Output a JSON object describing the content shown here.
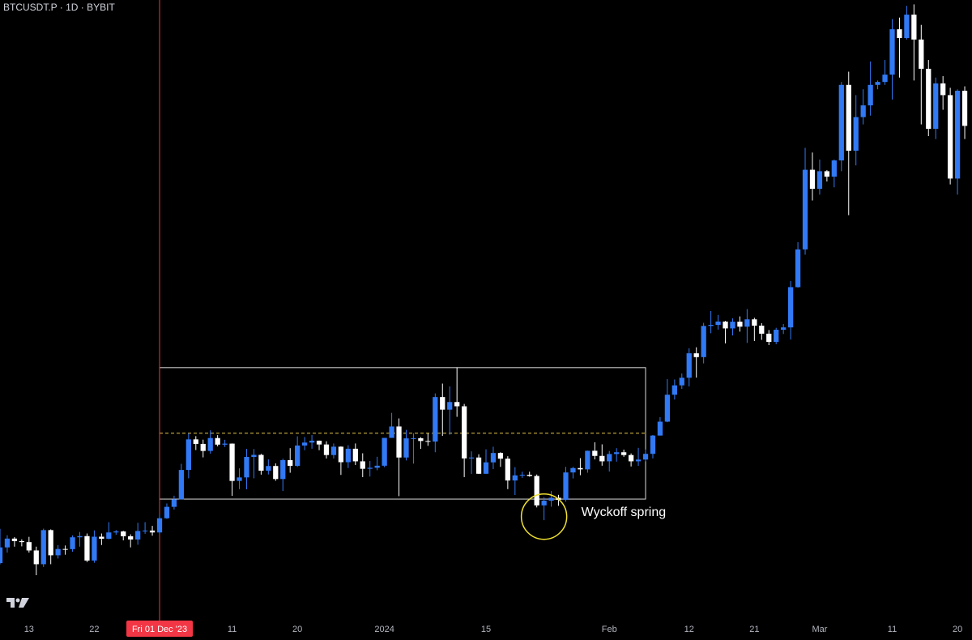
{
  "chart_data": {
    "type": "candlestick",
    "title": "BTCUSDT.P · 1D · BYBIT",
    "up_color": "#3179f5",
    "down_color": "#ffffff",
    "xlim": [
      "2023-11-09",
      "2024-03-22"
    ],
    "ylim": [
      31700,
      74100
    ],
    "xticks": [
      {
        "value": "2023-11-13",
        "label": "13"
      },
      {
        "value": "2023-11-22",
        "label": "22"
      },
      {
        "value": "2023-12-11",
        "label": "11"
      },
      {
        "value": "2023-12-20",
        "label": "20"
      },
      {
        "value": "2024-01-01",
        "label": "2024"
      },
      {
        "value": "2024-01-15",
        "label": "15"
      },
      {
        "value": "2024-02-01",
        "label": "Feb"
      },
      {
        "value": "2024-02-12",
        "label": "12"
      },
      {
        "value": "2024-02-21",
        "label": "21"
      },
      {
        "value": "2024-03-01",
        "label": "Mar"
      },
      {
        "value": "2024-03-11",
        "label": "11"
      },
      {
        "value": "2024-03-20",
        "label": "20"
      }
    ],
    "crosshair": {
      "x": "2023-12-01",
      "label": "Fri 01 Dec '23"
    },
    "range_box": {
      "x": [
        "2023-12-01",
        "2024-02-06"
      ],
      "y": [
        40000,
        48980
      ]
    },
    "midline": 44500,
    "spring": {
      "x": "2024-01-23",
      "y": 38800,
      "label": "Wyckoff spring"
    },
    "x": [
      "2023-11-09",
      "2023-11-10",
      "2023-11-11",
      "2023-11-12",
      "2023-11-13",
      "2023-11-14",
      "2023-11-15",
      "2023-11-16",
      "2023-11-17",
      "2023-11-18",
      "2023-11-19",
      "2023-11-20",
      "2023-11-21",
      "2023-11-22",
      "2023-11-23",
      "2023-11-24",
      "2023-11-25",
      "2023-11-26",
      "2023-11-27",
      "2023-11-28",
      "2023-11-29",
      "2023-11-30",
      "2023-12-01",
      "2023-12-02",
      "2023-12-03",
      "2023-12-04",
      "2023-12-05",
      "2023-12-06",
      "2023-12-07",
      "2023-12-08",
      "2023-12-09",
      "2023-12-10",
      "2023-12-11",
      "2023-12-12",
      "2023-12-13",
      "2023-12-14",
      "2023-12-15",
      "2023-12-16",
      "2023-12-17",
      "2023-12-18",
      "2023-12-19",
      "2023-12-20",
      "2023-12-21",
      "2023-12-22",
      "2023-12-23",
      "2023-12-24",
      "2023-12-25",
      "2023-12-26",
      "2023-12-27",
      "2023-12-28",
      "2023-12-29",
      "2023-12-30",
      "2023-12-31",
      "2024-01-01",
      "2024-01-02",
      "2024-01-03",
      "2024-01-04",
      "2024-01-05",
      "2024-01-06",
      "2024-01-07",
      "2024-01-08",
      "2024-01-09",
      "2024-01-10",
      "2024-01-11",
      "2024-01-12",
      "2024-01-13",
      "2024-01-14",
      "2024-01-15",
      "2024-01-16",
      "2024-01-17",
      "2024-01-18",
      "2024-01-19",
      "2024-01-20",
      "2024-01-21",
      "2024-01-22",
      "2024-01-23",
      "2024-01-24",
      "2024-01-25",
      "2024-01-26",
      "2024-01-27",
      "2024-01-28",
      "2024-01-29",
      "2024-01-30",
      "2024-01-31",
      "2024-02-01",
      "2024-02-02",
      "2024-02-03",
      "2024-02-04",
      "2024-02-05",
      "2024-02-06",
      "2024-02-07",
      "2024-02-08",
      "2024-02-09",
      "2024-02-10",
      "2024-02-11",
      "2024-02-12",
      "2024-02-13",
      "2024-02-14",
      "2024-02-15",
      "2024-02-16",
      "2024-02-17",
      "2024-02-18",
      "2024-02-19",
      "2024-02-20",
      "2024-02-21",
      "2024-02-22",
      "2024-02-23",
      "2024-02-24",
      "2024-02-25",
      "2024-02-26",
      "2024-02-27",
      "2024-02-28",
      "2024-02-29",
      "2024-03-01",
      "2024-03-02",
      "2024-03-03",
      "2024-03-04",
      "2024-03-05",
      "2024-03-06",
      "2024-03-07",
      "2024-03-08",
      "2024-03-09",
      "2024-03-10",
      "2024-03-11",
      "2024-03-12",
      "2024-03-13",
      "2024-03-14",
      "2024-03-15",
      "2024-03-16",
      "2024-03-17",
      "2024-03-18",
      "2024-03-19",
      "2024-03-20",
      "2024-03-21"
    ],
    "ohlc": [
      [
        35630,
        37970,
        35540,
        36700
      ],
      [
        36700,
        37530,
        36340,
        37300
      ],
      [
        37300,
        37400,
        36750,
        37130
      ],
      [
        37130,
        37250,
        36770,
        37060
      ],
      [
        37060,
        37420,
        36340,
        36490
      ],
      [
        36490,
        36750,
        34800,
        35550
      ],
      [
        35550,
        37980,
        35360,
        37880
      ],
      [
        37880,
        37930,
        35550,
        36160
      ],
      [
        36160,
        36850,
        35940,
        36590
      ],
      [
        36590,
        36830,
        36200,
        36580
      ],
      [
        36580,
        37520,
        36400,
        37390
      ],
      [
        37390,
        37750,
        36750,
        37470
      ],
      [
        37470,
        37650,
        35700,
        35800
      ],
      [
        35800,
        37860,
        35650,
        37430
      ],
      [
        37430,
        37650,
        36860,
        37290
      ],
      [
        37290,
        38420,
        37250,
        37720
      ],
      [
        37720,
        37890,
        37560,
        37790
      ],
      [
        37790,
        37830,
        37180,
        37460
      ],
      [
        37460,
        37590,
        36700,
        37240
      ],
      [
        37240,
        38380,
        36880,
        37820
      ],
      [
        37820,
        38420,
        37630,
        37850
      ],
      [
        37850,
        38170,
        37500,
        37720
      ],
      [
        37720,
        38950,
        37610,
        38690
      ],
      [
        38690,
        39700,
        38650,
        39470
      ],
      [
        39470,
        40230,
        39280,
        39980
      ],
      [
        39980,
        42410,
        39980,
        41990
      ],
      [
        41990,
        44490,
        41420,
        44080
      ],
      [
        44080,
        44300,
        43350,
        43770
      ],
      [
        43770,
        44060,
        42850,
        43290
      ],
      [
        43290,
        44700,
        43100,
        44170
      ],
      [
        44170,
        44370,
        43600,
        43720
      ],
      [
        43720,
        44050,
        43560,
        43790
      ],
      [
        43790,
        43800,
        40220,
        41240
      ],
      [
        41240,
        42100,
        40680,
        41480
      ],
      [
        41480,
        43430,
        40670,
        42880
      ],
      [
        42880,
        43420,
        41420,
        43020
      ],
      [
        43020,
        43090,
        41670,
        41940
      ],
      [
        41940,
        42710,
        41680,
        42260
      ],
      [
        42260,
        42440,
        41250,
        41370
      ],
      [
        41370,
        42760,
        40550,
        42660
      ],
      [
        42660,
        43480,
        41800,
        42270
      ],
      [
        42270,
        44290,
        42200,
        43660
      ],
      [
        43660,
        44240,
        43340,
        43860
      ],
      [
        43860,
        44380,
        43440,
        43990
      ],
      [
        43990,
        44000,
        43340,
        43730
      ],
      [
        43730,
        43950,
        42770,
        43010
      ],
      [
        43010,
        43800,
        42770,
        43580
      ],
      [
        43580,
        43600,
        41650,
        42520
      ],
      [
        42520,
        43680,
        42120,
        43440
      ],
      [
        43440,
        43800,
        42330,
        42580
      ],
      [
        42580,
        43130,
        41500,
        42070
      ],
      [
        42070,
        42600,
        41540,
        42140
      ],
      [
        42140,
        42890,
        41970,
        42280
      ],
      [
        42280,
        44180,
        42180,
        44180
      ],
      [
        44180,
        45890,
        44180,
        44960
      ],
      [
        44960,
        45510,
        40200,
        42840
      ],
      [
        42840,
        44730,
        42640,
        44150
      ],
      [
        44150,
        44490,
        42420,
        44160
      ],
      [
        44160,
        44230,
        43430,
        43970
      ],
      [
        43970,
        44490,
        43640,
        43930
      ],
      [
        43930,
        47220,
        43200,
        46970
      ],
      [
        46970,
        47890,
        44320,
        46110
      ],
      [
        46110,
        47700,
        44400,
        46630
      ],
      [
        46630,
        49000,
        45620,
        46340
      ],
      [
        46340,
        46500,
        41500,
        42780
      ],
      [
        42780,
        43260,
        41720,
        42840
      ],
      [
        42840,
        43060,
        41720,
        41730
      ],
      [
        41730,
        43400,
        41720,
        42510
      ],
      [
        42510,
        43580,
        42050,
        43150
      ],
      [
        43150,
        43200,
        42200,
        42760
      ],
      [
        42760,
        42930,
        40680,
        41270
      ],
      [
        41270,
        42180,
        40280,
        41620
      ],
      [
        41620,
        41870,
        41450,
        41660
      ],
      [
        41660,
        41870,
        41530,
        41580
      ],
      [
        41580,
        41680,
        39430,
        39570
      ],
      [
        39570,
        40130,
        38560,
        39890
      ],
      [
        39890,
        40550,
        39480,
        40090
      ],
      [
        40090,
        40290,
        39540,
        39950
      ],
      [
        39950,
        42200,
        39820,
        41820
      ],
      [
        41820,
        42200,
        41410,
        42120
      ],
      [
        42120,
        42800,
        41630,
        42030
      ],
      [
        42030,
        43310,
        41800,
        43300
      ],
      [
        43300,
        43880,
        42710,
        42950
      ],
      [
        42950,
        43740,
        42280,
        42580
      ],
      [
        42580,
        43290,
        41880,
        43080
      ],
      [
        43080,
        43480,
        42560,
        43200
      ],
      [
        43200,
        43380,
        42890,
        43010
      ],
      [
        43010,
        43120,
        42230,
        42580
      ],
      [
        42580,
        43500,
        42270,
        42700
      ],
      [
        42700,
        43390,
        42580,
        43090
      ],
      [
        43090,
        44380,
        42780,
        44340
      ],
      [
        44340,
        45600,
        44340,
        45290
      ],
      [
        45290,
        48200,
        45250,
        47130
      ],
      [
        47130,
        48170,
        46800,
        47770
      ],
      [
        47770,
        48580,
        47530,
        48290
      ],
      [
        48290,
        50300,
        47700,
        49960
      ],
      [
        49960,
        50370,
        48300,
        49700
      ],
      [
        49700,
        52040,
        49270,
        51830
      ],
      [
        51830,
        52850,
        51330,
        51900
      ],
      [
        51900,
        52580,
        51580,
        52130
      ],
      [
        52130,
        52170,
        50640,
        51660
      ],
      [
        51660,
        52350,
        51180,
        52120
      ],
      [
        52120,
        52480,
        51440,
        51780
      ],
      [
        51780,
        52980,
        50670,
        52280
      ],
      [
        52280,
        52390,
        50800,
        51850
      ],
      [
        51850,
        52020,
        50880,
        51300
      ],
      [
        51300,
        51550,
        50520,
        50740
      ],
      [
        50740,
        51700,
        50580,
        51570
      ],
      [
        51570,
        51960,
        51280,
        51730
      ],
      [
        51730,
        54900,
        50900,
        54480
      ],
      [
        54480,
        57550,
        54450,
        57060
      ],
      [
        57060,
        64000,
        56700,
        62500
      ],
      [
        62500,
        63680,
        60400,
        61200
      ],
      [
        61200,
        63200,
        60800,
        62400
      ],
      [
        62400,
        62480,
        61700,
        62030
      ],
      [
        62030,
        63200,
        61300,
        63140
      ],
      [
        63140,
        68500,
        62400,
        68300
      ],
      [
        68300,
        69200,
        59400,
        63800
      ],
      [
        63800,
        67600,
        62800,
        66100
      ],
      [
        66100,
        68000,
        65600,
        66900
      ],
      [
        66900,
        69900,
        66200,
        68300
      ],
      [
        68300,
        68600,
        68000,
        68500
      ],
      [
        68500,
        70000,
        68300,
        69000
      ],
      [
        69000,
        72800,
        67300,
        72100
      ],
      [
        72100,
        72900,
        68800,
        71500
      ],
      [
        71500,
        73700,
        71400,
        73100
      ],
      [
        73100,
        73800,
        68600,
        71400
      ],
      [
        71400,
        72400,
        65600,
        69400
      ],
      [
        69400,
        70000,
        64800,
        65300
      ],
      [
        65300,
        68800,
        64600,
        68400
      ],
      [
        68400,
        68900,
        66600,
        67600
      ],
      [
        67600,
        68100,
        61500,
        61900
      ],
      [
        61900,
        68000,
        60800,
        67900
      ],
      [
        67900,
        68200,
        64600,
        65500
      ]
    ]
  }
}
